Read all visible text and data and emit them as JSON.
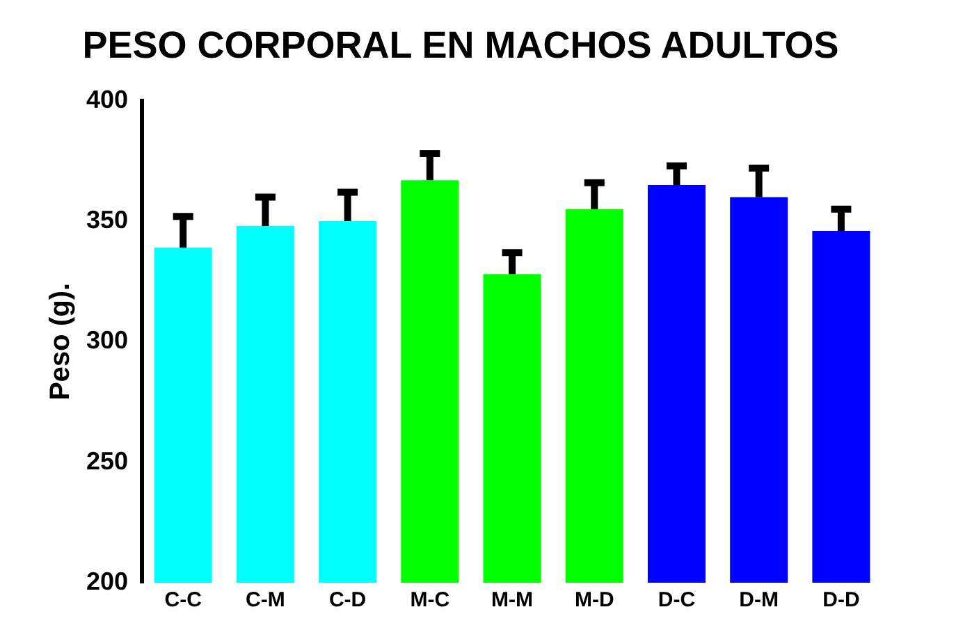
{
  "chart_data": {
    "type": "bar",
    "title": "PESO CORPORAL EN MACHOS ADULTOS",
    "ylabel": "Peso (g).",
    "categories": [
      "C-C",
      "C-M",
      "C-D",
      "M-C",
      "M-M",
      "M-D",
      "D-C",
      "D-M",
      "D-D"
    ],
    "values": [
      339,
      348,
      350,
      367,
      328,
      355,
      365,
      360,
      346
    ],
    "errors": [
      [
        339,
        352
      ],
      [
        348,
        360
      ],
      [
        350,
        362
      ],
      [
        367,
        378
      ],
      [
        328,
        337
      ],
      [
        355,
        366
      ],
      [
        365,
        373
      ],
      [
        360,
        372
      ],
      [
        346,
        355
      ]
    ],
    "colors": [
      "#00ffff",
      "#00ffff",
      "#00ffff",
      "#00ff00",
      "#00ff00",
      "#00ff00",
      "#0000ff",
      "#0000ff",
      "#0000ff"
    ],
    "ylim": [
      200,
      400
    ],
    "yticks": [
      200,
      250,
      300,
      350,
      400
    ],
    "grid": false,
    "legend": false
  }
}
